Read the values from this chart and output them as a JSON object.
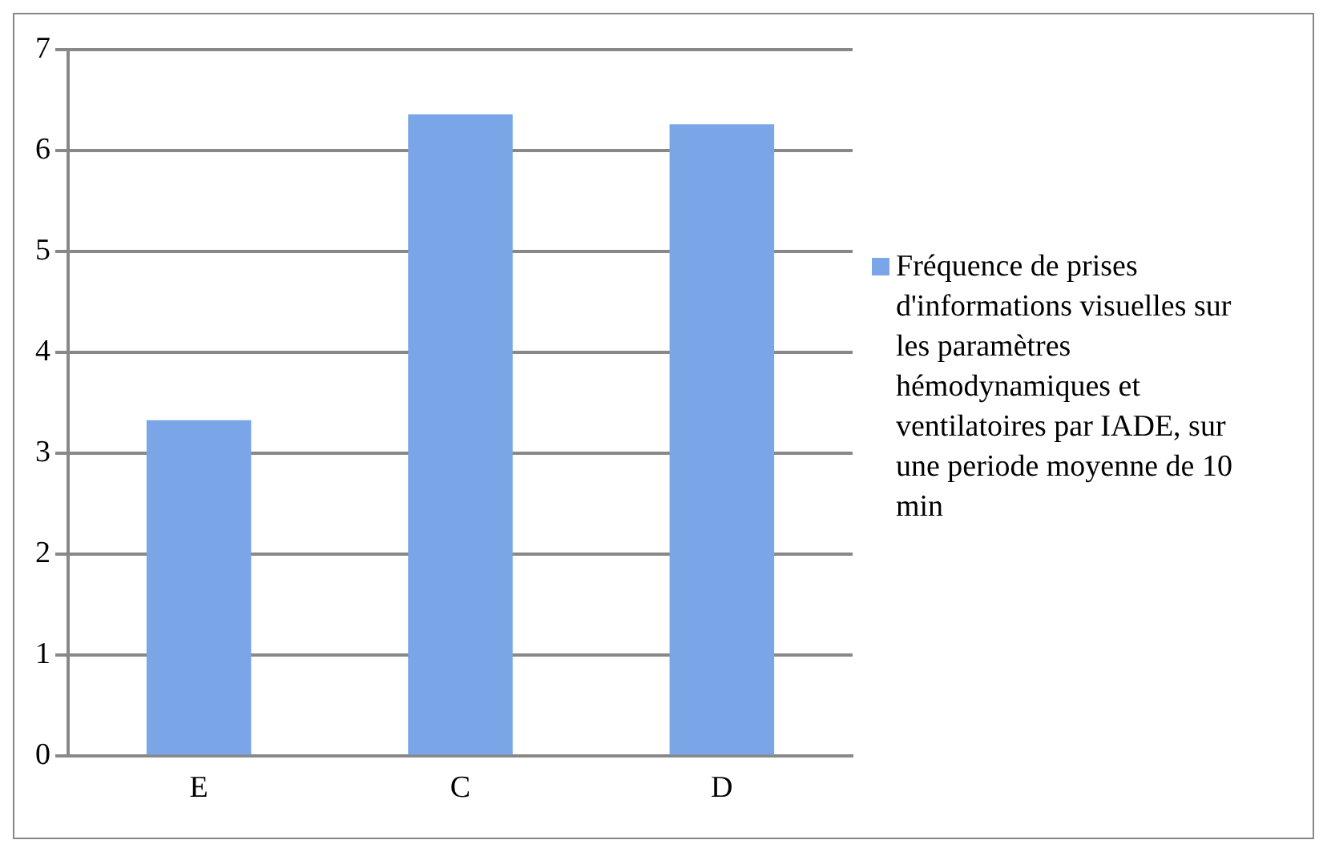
{
  "chart_data": {
    "type": "bar",
    "categories": [
      "E",
      "C",
      "D"
    ],
    "series": [
      {
        "name": "Fréquence de prises d'informations visuelles sur les paramètres hémodynamiques et ventilatoires par IADE, sur une periode moyenne de 10 min",
        "color": "#7aa6e8",
        "values": [
          3.33,
          6.36,
          6.26
        ]
      }
    ],
    "ylim": [
      0,
      7
    ],
    "yticks": [
      0,
      1,
      2,
      3,
      4,
      5,
      6,
      7
    ],
    "grid": "y",
    "legend": "right"
  }
}
